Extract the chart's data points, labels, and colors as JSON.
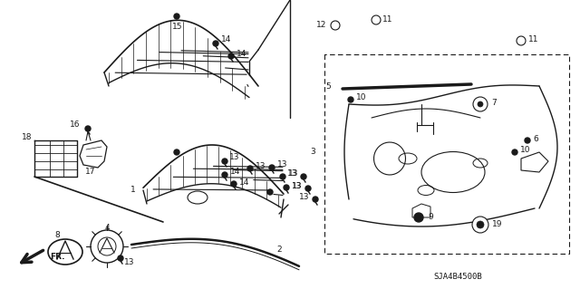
{
  "diagram_code": "SJA4B4500B",
  "bg_color": "#ffffff",
  "line_color": "#1a1a1a",
  "fig_width": 6.4,
  "fig_height": 3.19,
  "dpi": 100,
  "font_size": 6.5,
  "bold_font_size": 7.0
}
